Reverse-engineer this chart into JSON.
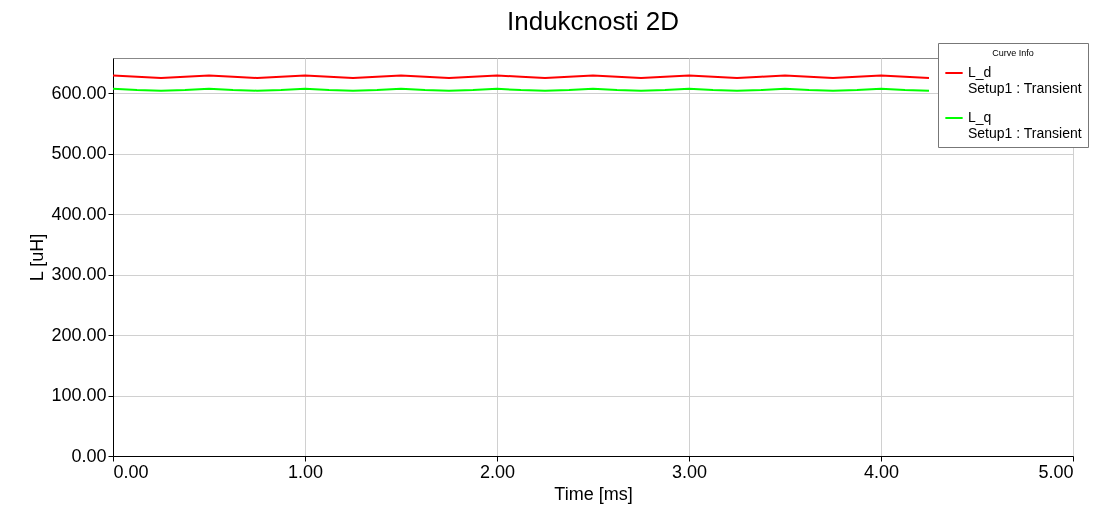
{
  "chart_data": {
    "type": "line",
    "title": "Indukcnosti 2D",
    "xlabel": "Time [ms]",
    "ylabel": "L [uH]",
    "legend_title": "Curve Info",
    "x": [
      0,
      0.125,
      0.25,
      0.375,
      0.5,
      0.625,
      0.75,
      0.875,
      1,
      1.125,
      1.25,
      1.375,
      1.5,
      1.625,
      1.75,
      1.875,
      2,
      2.125,
      2.25,
      2.375,
      2.5,
      2.625,
      2.75,
      2.875,
      3,
      3.125,
      3.25,
      3.375,
      3.5,
      3.625,
      3.75,
      3.875,
      4,
      4.125,
      4.25
    ],
    "series": [
      {
        "name": "L_d Setup1 : Transient",
        "color": "#ff0000",
        "values": [
          629,
          627,
          625,
          627,
          629,
          627,
          625,
          627,
          629,
          627,
          625,
          627,
          629,
          627,
          625,
          627,
          629,
          627,
          625,
          627,
          629,
          627,
          625,
          627,
          629,
          627,
          625,
          627,
          629,
          627,
          625,
          627,
          629,
          627,
          625
        ]
      },
      {
        "name": "L_q Setup1 : Transient",
        "color": "#00ff00",
        "values": [
          607,
          605,
          604,
          605,
          607,
          605,
          604,
          605,
          607,
          605,
          604,
          605,
          607,
          605,
          604,
          605,
          607,
          605,
          604,
          605,
          607,
          605,
          604,
          605,
          607,
          605,
          604,
          605,
          607,
          605,
          604,
          605,
          607,
          605,
          604
        ]
      }
    ],
    "xlim": [
      0,
      5
    ],
    "xticks": [
      {
        "value": 0,
        "label": "0.00"
      },
      {
        "value": 1,
        "label": "1.00"
      },
      {
        "value": 2,
        "label": "2.00"
      },
      {
        "value": 3,
        "label": "3.00"
      },
      {
        "value": 4,
        "label": "4.00"
      },
      {
        "value": 5,
        "label": "5.00"
      }
    ],
    "ylim": [
      0,
      658
    ],
    "yticks": [
      {
        "value": 0,
        "label": "0.00"
      },
      {
        "value": 100,
        "label": "100.00"
      },
      {
        "value": 200,
        "label": "200.00"
      },
      {
        "value": 300,
        "label": "300.00"
      },
      {
        "value": 400,
        "label": "400.00"
      },
      {
        "value": 500,
        "label": "500.00"
      },
      {
        "value": 600,
        "label": "600.00"
      }
    ],
    "grid": true,
    "legend": "top right",
    "marker": "none",
    "line_style": "solid"
  }
}
